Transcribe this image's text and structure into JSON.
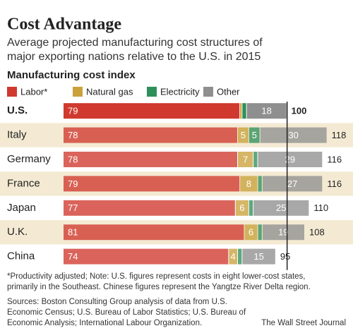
{
  "chart_data": {
    "type": "stacked-bar-horizontal",
    "title": "Cost Advantage",
    "subtitle": [
      "Average projected manufacturing cost structures of",
      "major exporting nations relative to the U.S. in 2015"
    ],
    "value_label": "Manufacturing cost index",
    "categories": [
      "U.S.",
      "Italy",
      "Germany",
      "France",
      "Japan",
      "U.K.",
      "China"
    ],
    "series": [
      {
        "name": "Labor*",
        "color": "#d0392e",
        "values": [
          79,
          78,
          78,
          79,
          77,
          81,
          74
        ]
      },
      {
        "name": "Natural gas",
        "color": "#c9a23c",
        "values": [
          1,
          5,
          7,
          8,
          6,
          6,
          4
        ]
      },
      {
        "name": "Electricity",
        "color": "#2f8f5b",
        "values": [
          2,
          5,
          2,
          2,
          2,
          2,
          2
        ]
      },
      {
        "name": "Other",
        "color": "#8f8f8f",
        "values": [
          18,
          30,
          29,
          27,
          25,
          19,
          15
        ]
      }
    ],
    "totals": [
      100,
      118,
      116,
      116,
      110,
      108,
      95
    ],
    "xlim": [
      0,
      120
    ],
    "notes": [
      "*Productivity adjusted; Note: U.S. figures represent costs in eight lower-cost states,",
      "primarily in the Southeast. Chinese figures represent the Yangtze River Delta region."
    ],
    "sources": [
      "Sources: Boston Consulting Group analysis of data from U.S.",
      "Economic Census; U.S. Bureau of Labor Statistics; U.S. Bureau of",
      "Economic Analysis; International Labour Organization."
    ],
    "credit": "The Wall Street Journal"
  }
}
